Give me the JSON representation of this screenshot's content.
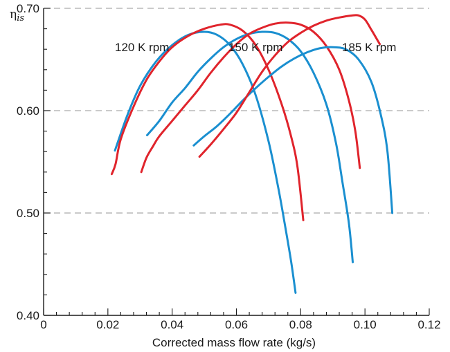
{
  "chart_data": {
    "type": "line",
    "xlabel": "Corrected mass flow rate (kg/s)",
    "ylabel": "η",
    "ylabel_sub": "is",
    "xlim": [
      0,
      0.12
    ],
    "ylim": [
      0.4,
      0.7
    ],
    "xticks": [
      "0",
      "0.02",
      "0.04",
      "0.06",
      "0.08",
      "0.10",
      "0.12"
    ],
    "xtick_values": [
      0,
      0.02,
      0.04,
      0.06,
      0.08,
      0.1,
      0.12
    ],
    "yticks": [
      "0.40",
      "0.50",
      "0.60",
      "0.70"
    ],
    "ytick_values": [
      0.4,
      0.5,
      0.6,
      0.7
    ],
    "x_minor_step": 0.004,
    "y_minor_step": 0.02,
    "dashed_gridlines_y": [
      0.5,
      0.6,
      0.7
    ],
    "speed_labels": [
      "120 K rpm",
      "150 K rpm",
      "185 K rpm"
    ],
    "colors": {
      "blue": "#1a8fd0",
      "red": "#e0242c",
      "axis": "#1a1a1a",
      "grid": "#aaaaaa"
    },
    "series": [
      {
        "color": "blue",
        "points": [
          [
            0.0222,
            0.561
          ],
          [
            0.026,
            0.595
          ],
          [
            0.03,
            0.624
          ],
          [
            0.035,
            0.648
          ],
          [
            0.04,
            0.664
          ],
          [
            0.045,
            0.674
          ],
          [
            0.05,
            0.677
          ],
          [
            0.054,
            0.674
          ],
          [
            0.058,
            0.664
          ],
          [
            0.062,
            0.645
          ],
          [
            0.066,
            0.615
          ],
          [
            0.07,
            0.57
          ],
          [
            0.073,
            0.525
          ],
          [
            0.075,
            0.49
          ],
          [
            0.077,
            0.453
          ],
          [
            0.0784,
            0.422
          ]
        ]
      },
      {
        "color": "red",
        "points": [
          [
            0.0212,
            0.538
          ],
          [
            0.0224,
            0.548
          ],
          [
            0.024,
            0.572
          ],
          [
            0.028,
            0.604
          ],
          [
            0.032,
            0.63
          ],
          [
            0.036,
            0.648
          ],
          [
            0.04,
            0.662
          ],
          [
            0.045,
            0.673
          ],
          [
            0.05,
            0.68
          ],
          [
            0.055,
            0.684
          ],
          [
            0.058,
            0.684
          ],
          [
            0.062,
            0.678
          ],
          [
            0.066,
            0.664
          ],
          [
            0.07,
            0.64
          ],
          [
            0.074,
            0.607
          ],
          [
            0.077,
            0.575
          ],
          [
            0.079,
            0.545
          ],
          [
            0.0808,
            0.493
          ]
        ]
      },
      {
        "color": "blue",
        "points": [
          [
            0.0322,
            0.576
          ],
          [
            0.036,
            0.59
          ],
          [
            0.04,
            0.608
          ],
          [
            0.044,
            0.622
          ],
          [
            0.048,
            0.638
          ],
          [
            0.052,
            0.651
          ],
          [
            0.056,
            0.662
          ],
          [
            0.06,
            0.67
          ],
          [
            0.064,
            0.675
          ],
          [
            0.068,
            0.677
          ],
          [
            0.072,
            0.676
          ],
          [
            0.076,
            0.67
          ],
          [
            0.08,
            0.658
          ],
          [
            0.084,
            0.637
          ],
          [
            0.088,
            0.606
          ],
          [
            0.091,
            0.568
          ],
          [
            0.093,
            0.53
          ],
          [
            0.095,
            0.49
          ],
          [
            0.0962,
            0.452
          ]
        ]
      },
      {
        "color": "red",
        "points": [
          [
            0.0304,
            0.54
          ],
          [
            0.032,
            0.554
          ],
          [
            0.034,
            0.565
          ],
          [
            0.036,
            0.575
          ],
          [
            0.04,
            0.59
          ],
          [
            0.044,
            0.605
          ],
          [
            0.048,
            0.62
          ],
          [
            0.052,
            0.637
          ],
          [
            0.056,
            0.652
          ],
          [
            0.06,
            0.665
          ],
          [
            0.064,
            0.675
          ],
          [
            0.068,
            0.681
          ],
          [
            0.072,
            0.685
          ],
          [
            0.076,
            0.686
          ],
          [
            0.08,
            0.684
          ],
          [
            0.084,
            0.677
          ],
          [
            0.088,
            0.663
          ],
          [
            0.092,
            0.64
          ],
          [
            0.095,
            0.61
          ],
          [
            0.097,
            0.58
          ],
          [
            0.0984,
            0.544
          ]
        ]
      },
      {
        "color": "blue",
        "points": [
          [
            0.0467,
            0.566
          ],
          [
            0.05,
            0.575
          ],
          [
            0.054,
            0.585
          ],
          [
            0.058,
            0.597
          ],
          [
            0.062,
            0.61
          ],
          [
            0.066,
            0.622
          ],
          [
            0.07,
            0.633
          ],
          [
            0.074,
            0.643
          ],
          [
            0.078,
            0.651
          ],
          [
            0.082,
            0.657
          ],
          [
            0.086,
            0.661
          ],
          [
            0.09,
            0.662
          ],
          [
            0.094,
            0.66
          ],
          [
            0.098,
            0.65
          ],
          [
            0.102,
            0.628
          ],
          [
            0.105,
            0.595
          ],
          [
            0.107,
            0.56
          ],
          [
            0.1085,
            0.5
          ]
        ]
      },
      {
        "color": "red",
        "points": [
          [
            0.0485,
            0.555
          ],
          [
            0.052,
            0.567
          ],
          [
            0.056,
            0.582
          ],
          [
            0.06,
            0.598
          ],
          [
            0.064,
            0.618
          ],
          [
            0.068,
            0.638
          ],
          [
            0.072,
            0.654
          ],
          [
            0.076,
            0.667
          ],
          [
            0.08,
            0.676
          ],
          [
            0.084,
            0.683
          ],
          [
            0.088,
            0.688
          ],
          [
            0.092,
            0.691
          ],
          [
            0.096,
            0.693
          ],
          [
            0.098,
            0.693
          ],
          [
            0.1,
            0.689
          ],
          [
            0.102,
            0.679
          ],
          [
            0.1046,
            0.665
          ]
        ]
      }
    ]
  }
}
